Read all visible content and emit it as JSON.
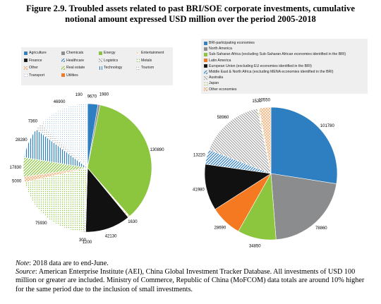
{
  "title_lines": [
    "Figure 2.9. Troubled assets related to past BRI/SOE corporate investments, cumulative",
    "notional amount expressed USD million over the period 2005-2018"
  ],
  "patterns": {
    "solid_blue": "#2e7fc1",
    "grey": "#8a8c8e",
    "green": "#8cc63f",
    "orange_dots": "#f7931e",
    "black": "#111111",
    "blue_diag": "#2e7fc1",
    "grey_diag": "#9a9a9a",
    "green_dots": "#8cc63f",
    "peach_x": "#f2b07a",
    "green_diag": "#8cc63f",
    "blue_vert": "#2e7fc1",
    "grey_hdots": "#aaaaaa",
    "blue_dots": "#a8c8e8",
    "orange": "#f47920",
    "grey_light": "#c8c8c8",
    "orange_light": "#f4b183"
  },
  "chart_data": [
    {
      "type": "pie",
      "legend": [
        {
          "label": "Agriculture",
          "pattern": "solid_blue"
        },
        {
          "label": "Chemicals",
          "pattern": "grey"
        },
        {
          "label": "Energy",
          "pattern": "green"
        },
        {
          "label": "Entertainment",
          "pattern": "orange_dots"
        },
        {
          "label": "Finance",
          "pattern": "black"
        },
        {
          "label": "Healthcare",
          "pattern": "blue_diag"
        },
        {
          "label": "Logistics",
          "pattern": "grey_diag"
        },
        {
          "label": "Metals",
          "pattern": "green_dots"
        },
        {
          "label": "Other",
          "pattern": "peach_x"
        },
        {
          "label": "Real estate",
          "pattern": "green_diag"
        },
        {
          "label": "Technology",
          "pattern": "blue_vert"
        },
        {
          "label": "Tourism",
          "pattern": "grey_hdots"
        },
        {
          "label": "Transport",
          "pattern": "blue_dots"
        },
        {
          "label": "Utilities",
          "pattern": "orange"
        }
      ],
      "slices": [
        {
          "label": "Agriculture",
          "value": 9670,
          "value_label": "9670",
          "pattern": "solid_blue"
        },
        {
          "label": "Chemicals",
          "value": 1980,
          "value_label": "1980",
          "pattern": "grey"
        },
        {
          "label": "Energy",
          "value": 130890,
          "value_label": "130890",
          "pattern": "green"
        },
        {
          "label": "Entertainment",
          "value": 1630,
          "value_label": "1630",
          "pattern": "orange_dots"
        },
        {
          "label": "Finance",
          "value": 42130,
          "value_label": "42130",
          "pattern": "black"
        },
        {
          "label": "Healthcare",
          "value": 300,
          "value_label": "300",
          "pattern": "blue_diag"
        },
        {
          "label": "Logistics",
          "value": 1200,
          "value_label": "1200",
          "pattern": "grey_diag"
        },
        {
          "label": "Metals",
          "value": 75930,
          "value_label": "75930",
          "pattern": "green_dots"
        },
        {
          "label": "Other",
          "value": 5000,
          "value_label": "5000",
          "pattern": "peach_x"
        },
        {
          "label": "Real estate",
          "value": 17830,
          "value_label": "17830",
          "pattern": "green_diag"
        },
        {
          "label": "Technology",
          "value": 28280,
          "value_label": "28280",
          "pattern": "blue_vert"
        },
        {
          "label": "Tourism",
          "value": 7360,
          "value_label": "7360",
          "pattern": "grey_hdots"
        },
        {
          "label": "Transport",
          "value": 46900,
          "value_label": "46900",
          "pattern": "blue_dots"
        },
        {
          "label": "Utilities",
          "value": 190,
          "value_label": "190",
          "pattern": "orange"
        }
      ]
    },
    {
      "type": "pie",
      "legend": [
        {
          "label": "BRI-participating economies",
          "pattern": "solid_blue"
        },
        {
          "label": "North America",
          "pattern": "grey"
        },
        {
          "label": "Sub-Saharan Africa (excluding Sub-Saharan African economies identified in the BRI)",
          "pattern": "green"
        },
        {
          "label": "Latin America",
          "pattern": "orange"
        },
        {
          "label": "European Union (excluding EU economies identified in the BRI)",
          "pattern": "black"
        },
        {
          "label": "Middle East & North Africa (excluding MENA economies identified in the BRI)",
          "pattern": "blue_diag"
        },
        {
          "label": "Australia",
          "pattern": "grey_diag"
        },
        {
          "label": "Japan",
          "pattern": "green_dots"
        },
        {
          "label": "Other economies",
          "pattern": "peach_x"
        }
      ],
      "slices": [
        {
          "label": "BRI-participating economies",
          "value": 101780,
          "value_label": "101780",
          "pattern": "solid_blue"
        },
        {
          "label": "North America",
          "value": 78860,
          "value_label": "78860",
          "pattern": "grey"
        },
        {
          "label": "Sub-Saharan Africa (excluding Sub-Saharan African economies identified in the BRI)",
          "value": 34850,
          "value_label": "34850",
          "pattern": "green"
        },
        {
          "label": "Latin America",
          "value": 28690,
          "value_label": "28690",
          "pattern": "orange"
        },
        {
          "label": "European Union (excluding EU economies identified in the BRI)",
          "value": 41980,
          "value_label": "41980",
          "pattern": "black"
        },
        {
          "label": "Middle East & North Africa (excluding MENA economies identified in the BRI)",
          "value": 13220,
          "value_label": "13220",
          "pattern": "blue_diag"
        },
        {
          "label": "Australia",
          "value": 58960,
          "value_label": "58960",
          "pattern": "grey_diag"
        },
        {
          "label": "Japan",
          "value": 1520,
          "value_label": "1520",
          "pattern": "green_dots"
        },
        {
          "label": "Other economies",
          "value": 10550,
          "value_label": "10550",
          "pattern": "peach_x"
        }
      ]
    }
  ],
  "notes": {
    "note_label": "Note",
    "note_text": ": 2018 data are to end-June.",
    "source_label": "Source",
    "source_text": ": American Enterprise Institute (AEI), China Global Investment Tracker Database. All investments of USD 100 million or greater are included. Ministry of Commerce, Republic of China (MoFCOM) data totals are around 10% higher for the same period due to the inclusion of small investments."
  }
}
